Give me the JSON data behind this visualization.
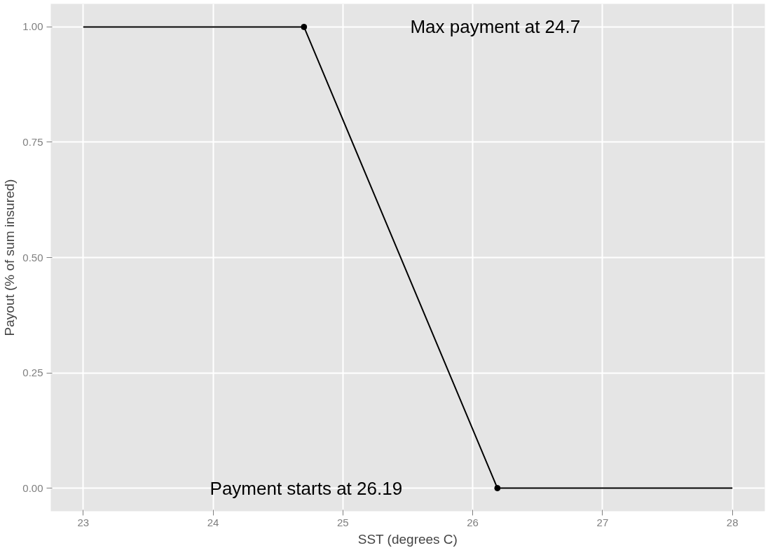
{
  "chart_data": {
    "type": "line",
    "xlabel": "SST (degrees C)",
    "ylabel": "Payout (% of sum insured)",
    "series": [
      {
        "color": "#000000",
        "x": [
          23,
          24.7,
          26.19,
          28
        ],
        "values": [
          1,
          1,
          0,
          0
        ],
        "marker": "none"
      },
      {
        "type": "scatter",
        "color": "#000000",
        "x": [
          24.7,
          26.19
        ],
        "values": [
          1,
          0
        ],
        "marker": "circle"
      }
    ],
    "annotations": [
      "Max payment at 24.7",
      "Payment starts at 26.19"
    ],
    "xlim": [
      22.75,
      28.25
    ],
    "ylim": [
      -0.05,
      1.05
    ],
    "xticks": [
      23,
      24,
      25,
      26,
      27,
      28
    ],
    "yticks": [
      {
        "value": 0,
        "label": "0.00"
      },
      {
        "value": 0.25,
        "label": "0.25"
      },
      {
        "value": 0.5,
        "label": "0.50"
      },
      {
        "value": 0.75,
        "label": "0.75"
      },
      {
        "value": 1,
        "label": "1.00"
      }
    ],
    "grid": true
  }
}
